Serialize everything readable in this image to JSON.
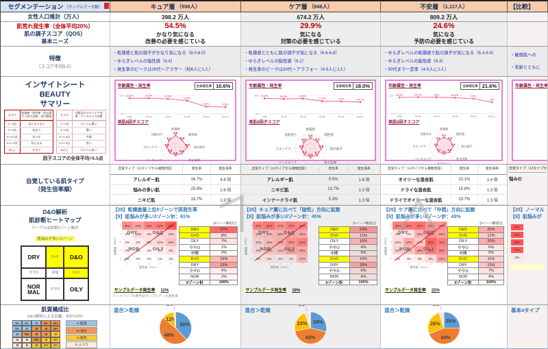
{
  "sidebar": {
    "header": "セグメンテーション",
    "header_small": "（サンプルデータ数）",
    "row_pop": "女性人口推計（万人）",
    "row_rate": "肌荒れ発生率（全体平均20%）",
    "row_qos": "肌の調子スコア（QOS）",
    "row_needs": "基本ニーズ",
    "row_feat": "特徴",
    "row_feat_sub": "（スコア平均5.5）",
    "insight_1": "インサイトシート",
    "insight_2": "BEAUTY",
    "insight_3": "サマリー",
    "score_note": "因子スコアの全体平均=5.5点",
    "score_table_left": {
      "border": "#b00000",
      "headers": [
        "スコア",
        "乾燥感・脂性感・肌の調子＋吹き出物・毛穴関連"
      ],
      "rows": [
        [
          "1～3点",
          "気にならない"
        ],
        [
          "3～5点",
          "あまり"
        ],
        [
          "5～6.5点",
          "ゆらぎ"
        ],
        [
          "6.5～8点",
          "気になる"
        ],
        [
          "8以上",
          "かなり"
        ]
      ]
    },
    "score_table_right": {
      "border": "#e8a7b8",
      "headers": [
        "スコア",
        "化粧品のスキンケア効果・ベースメイク効果"
      ],
      "rows": [
        [
          "1～3点",
          "たいへん悪い"
        ],
        [
          "3～5点",
          "悪い"
        ],
        [
          "5～6.5点",
          "中間"
        ],
        [
          "6.5～8点",
          "良い"
        ],
        [
          "8以上",
          "たいへん良い"
        ]
      ]
    },
    "row_types_1": "自覚している肌タイプ",
    "row_types_2": "（発生倍率順）",
    "dando_1": "D&O解析",
    "dando_2": "肌診断ヒートマップ",
    "dando_note1": "テーブルは診断9ゾーン集計",
    "dando_note2": "肌悩みが多い3ゾーン",
    "zone_matrix": {
      "cells": [
        [
          "DRY",
          "D>O",
          "D&O"
        ],
        [
          "ややD",
          "中間",
          "O>D"
        ],
        [
          "NORMAL",
          "ややO",
          "OILY"
        ]
      ],
      "yellow": [
        "D>O",
        "D&O",
        "O>D"
      ],
      "big": [
        "DRY",
        "D&O",
        "NORMAL",
        "OILY"
      ]
    },
    "comp_title": "肌質構成比",
    "comp_note": "D&O解析による定義、合計100%",
    "comp_matrix": [
      [
        "D+",
        "D+",
        "D",
        "M+",
        "M+"
      ],
      [
        "D+",
        "D",
        "M",
        "M",
        "M+"
      ],
      [
        "D",
        "Mn",
        "M",
        "M",
        "O"
      ],
      [
        "N",
        "N",
        "Mn",
        "O",
        "O+"
      ],
      [
        "N",
        "N",
        "O",
        "O+",
        "O+"
      ]
    ],
    "comp_legend": [
      {
        "label": "D 乾燥",
        "color": "#9dc3e6"
      },
      {
        "label": "M 混合",
        "color": "#f1975a"
      },
      {
        "label": "O 脂性",
        "color": "#ffc936"
      },
      {
        "label": "N ふつう",
        "color": "#fdeada"
      }
    ]
  },
  "columns": [
    {
      "name": "キュア層",
      "count": "（558人）",
      "pop": "398.2 万人",
      "pct": "54.5%",
      "line1": "かなり気になる",
      "line2": "改善の必要を感じている",
      "features": [
        "・乾燥感と肌の調子がかなり気になる（8.0-8.0）",
        "・ゆらぎレベルの脂性感（6.4）",
        "・発生率のピークは20代～アラサー（約6人に1人）"
      ],
      "chart": {
        "title": "年齢属性・発生率",
        "overall_label": "全体発生率",
        "overall_value": "10.6%",
        "ytop": "15%",
        "ymax": 15,
        "x": [
          "20前",
          "25-34",
          "35-44",
          "45-54",
          "55-64",
          "65以上"
        ],
        "y": [
          12.8,
          12.9,
          12.3,
          10.8,
          5.9,
          5.6
        ]
      },
      "radar": {
        "title": "美肌8因子スコア",
        "axes": [
          "乾燥感",
          "脂性感",
          "肌の調子",
          "吹き出物",
          "毛穴詰まり",
          "ベースメイク",
          "スキンケア",
          "化粧持ち"
        ],
        "values": [
          8.0,
          6.4,
          8.0,
          5.9,
          5.5,
          5.3,
          5.8,
          6.2
        ]
      },
      "types": {
        "headers": [
          "自覚タイプ（13タイプから複数回答）",
          "発生率",
          "発生倍率"
        ],
        "rows": [
          [
            "アレルギー肌",
            "16.7%",
            "4.8 倍"
          ],
          [
            "悩みの多い肌",
            "25.6%",
            "2.6 倍"
          ],
          [
            "ニキビ肌",
            "19.7%",
            "1.9 倍"
          ]
        ]
      },
      "dando": {
        "line25": "【25】乾燥度最上位5ゾーンで高発生率",
        "line9": "【9】肌悩みが多い3ゾーン計：61%",
        "heatmap": {
          "ylabel": "乾燥度（DRY）",
          "xlabel": "脂性度（OILY）",
          "yticks": [
            "5",
            "4",
            "3",
            "2",
            "1"
          ],
          "xticks": [
            "1",
            "2",
            "3",
            "4",
            "5"
          ],
          "rows": [
            [
              29,
              24,
              32,
              34,
              42
            ],
            [
              3,
              10,
              8,
              12,
              12
            ],
            [
              3,
              5,
              8,
              10,
              16
            ],
            [
              4,
              2,
              3,
              5,
              8
            ],
            [
              0,
              0,
              0,
              1,
              2
            ]
          ],
          "overlay": [
            "DRY",
            "D&O",
            "NOR",
            "OILY"
          ]
        },
        "zones": {
          "header": "【9ゾーン構成比】",
          "yellow": [
            "D&O",
            "O>D",
            "D>O"
          ],
          "rows": [
            [
              "D&O",
              "37%"
            ],
            [
              "O>D",
              "8%"
            ],
            [
              "OILY",
              "7%"
            ],
            [
              "ややO",
              "1%"
            ],
            [
              "中間",
              "2%"
            ],
            [
              "D>O",
              "16%"
            ],
            [
              "DRY",
              "23%"
            ],
            [
              "ややD",
              "4%"
            ],
            [
              "NOR",
              "2%"
            ]
          ],
          "total": [
            "9ゾーン計",
            "100%"
          ]
        },
        "sample_label": "サンプルデータ発生率",
        "sample_value": "11%",
        "note": "ヒートマップ%数字はサンプルデータ発生率"
      },
      "pie": {
        "label": "混合＞乾燥",
        "slices": [
          {
            "pct": 38,
            "color": "#5b9bd5",
            "text": "38%"
          },
          {
            "pct": 48,
            "color": "#ed7d31",
            "text": "48%"
          },
          {
            "pct": 12,
            "color": "#ffc000",
            "text": "12%"
          },
          {
            "pct": 2,
            "color": "#f6e3d5",
            "text": "2%"
          }
        ]
      }
    },
    {
      "name": "ケア層",
      "count": "（948人）",
      "pop": "674.2 万人",
      "pct": "29.9%",
      "line1": "気になる",
      "line2": "対策の必要を感じている",
      "features": [
        "・乾燥感とともに肌の調子が気になる（6.6-6.8）",
        "・ゆらぎレベルの脂性感（6.2）",
        "・発生率のピークは20代～アラフォー（4-5人に1人）"
      ],
      "chart": {
        "title": "年齢属性・発生率",
        "overall_label": "全体発生率",
        "overall_value": "18.0%",
        "ytop": "25%",
        "ymax": 25,
        "x": [
          "20前",
          "25-34",
          "35-44",
          "45-54",
          "55-64",
          "65以上"
        ],
        "y": [
          21.3,
          20.4,
          20.9,
          17.5,
          17.0,
          16.1
        ]
      },
      "radar": {
        "title": "美肌8因子スコア",
        "axes": [
          "乾燥感",
          "脂性感",
          "肌の調子",
          "吹き出物",
          "毛穴詰まり",
          "ベースメイク",
          "スキンケア",
          "化粧持ち"
        ],
        "values": [
          6.6,
          6.2,
          6.8,
          5.7,
          5.4,
          5.2,
          5.6,
          5.9
        ]
      },
      "types": {
        "headers": [
          "自覚タイプ（13タイプから複数回答）",
          "発生率",
          "発生倍率"
        ],
        "rows": [
          [
            "アレルギー肌",
            "5.5%",
            "1.6 倍"
          ],
          [
            "ニキビ肌",
            "13.7%",
            "1.3 倍"
          ],
          [
            "インナードライ肌",
            "5.3%",
            "1.3 倍"
          ]
        ]
      },
      "dando": {
        "line25": "【25】キュア層に比べて「脂性」方向に拡散",
        "line9": "【9】肌悩みが多い3ゾーン計：45%",
        "heatmap": {
          "ylabel": "乾燥度（DRY）",
          "xlabel": "脂性度（OILY）",
          "yticks": [
            "5",
            "4",
            "3",
            "2",
            "1"
          ],
          "xticks": [
            "1",
            "2",
            "3",
            "4",
            "5"
          ],
          "rows": [
            [
              30,
              35,
              27,
              32,
              29
            ],
            [
              13,
              16,
              18,
              21,
              20
            ],
            [
              10,
              15,
              19,
              26,
              31
            ],
            [
              8,
              14,
              14,
              23,
              20
            ],
            [
              3,
              5,
              4,
              4,
              17
            ]
          ],
          "overlay": [
            "DRY",
            "D&O",
            "NOR",
            "OILY"
          ]
        },
        "zones": {
          "header": "【9ゾーン構成比】",
          "yellow": [
            "D&O",
            "O>D",
            "D>O"
          ],
          "rows": [
            [
              "D&O",
              "24%"
            ],
            [
              "O>D",
              "11%"
            ],
            [
              "OILY",
              "16%"
            ],
            [
              "ややO",
              "4%"
            ],
            [
              "中間",
              "5%"
            ],
            [
              "D>O",
              "10%"
            ],
            [
              "DRY",
              "20%"
            ],
            [
              "ややD",
              "6%"
            ],
            [
              "NOR",
              "4%"
            ]
          ],
          "total": [
            "9ゾーン計",
            "100%"
          ]
        },
        "sample_label": "サンプルデータ発生率",
        "sample_value": "18%",
        "note": ""
      },
      "pie": {
        "label": "混合＞乾燥",
        "slices": [
          {
            "pct": 29,
            "color": "#5b9bd5",
            "text": "29%"
          },
          {
            "pct": 43,
            "color": "#ed7d31",
            "text": "43%"
          },
          {
            "pct": 22,
            "color": "#ffc000",
            "text": "22%"
          },
          {
            "pct": 5,
            "color": "#f6e3d5",
            "text": "5%"
          }
        ]
      }
    },
    {
      "name": "不安層",
      "count": "（1,117人）",
      "pop": "809.2 万人",
      "pct": "24.6%",
      "line1": "気になる",
      "line2": "予防の必要を感じている",
      "features": [
        "・ゆらぎレベルの乾燥感で肌の調子が気になる（6.3-6.6）",
        "・ゆらぎレベルの脂性感（6.3）",
        "・50代まで一定率（4-5人に1人）"
      ],
      "chart": {
        "title": "年齢属性・発生率",
        "overall_label": "全体発生率",
        "overall_value": "21.6%",
        "ytop": "25%",
        "ymax": 25,
        "x": [
          "20前",
          "25-34",
          "35-44",
          "45-54",
          "55-64",
          "65以上"
        ],
        "y": [
          22.8,
          23.1,
          23.0,
          22.4,
          21.0,
          16.0
        ]
      },
      "radar": {
        "title": "美肌8因子スコア",
        "axes": [
          "乾燥感",
          "脂性感",
          "肌の調子",
          "吹き出物",
          "毛穴詰まり",
          "ベースメイク",
          "スキンケア",
          "化粧持ち"
        ],
        "values": [
          6.3,
          6.3,
          6.6,
          5.6,
          5.3,
          5.2,
          5.5,
          5.8
        ]
      },
      "types": {
        "headers": [
          "自覚タイプ（13タイプから複数回答）",
          "発生率",
          "発生倍率"
        ],
        "rows": [
          [
            "オイリーな混合肌",
            "13.1%",
            "1.4 倍"
          ],
          [
            "ドライな混合肌",
            "15.8%",
            "1.3 倍"
          ],
          [
            "ドライでオイリーな混合肌",
            "23.7%",
            "1.3 倍"
          ]
        ]
      },
      "dando": {
        "line25": "【25】ケア層に比べて「中間」方向に拡散",
        "line9": "【9】肌悩みが多い3ゾーン計：43%",
        "heatmap": {
          "ylabel": "乾燥度（DRY）",
          "xlabel": "脂性度（OILY）",
          "yticks": [
            "5",
            "4",
            "3",
            "2",
            "1"
          ],
          "xticks": [
            "1",
            "2",
            "3",
            "4",
            "5"
          ],
          "rows": [
            [
              33,
              35,
              37,
              28,
              27
            ],
            [
              8,
              7,
              20,
              29,
              25
            ],
            [
              10,
              22,
              14,
              40,
              33
            ],
            [
              12,
              14,
              25,
              33,
              30
            ],
            [
              2,
              3,
              5,
              9,
              23
            ]
          ],
          "overlay": [
            "DRY",
            "D&O",
            "NOR",
            "OILY"
          ]
        },
        "zones": {
          "header": "【9ゾーン構成比】",
          "yellow": [
            "D&O",
            "O>D",
            "D>O"
          ],
          "rows": [
            [
              "D&O",
              "20%"
            ],
            [
              "O>D",
              "12%"
            ],
            [
              "OILY",
              "20%"
            ],
            [
              "ややO",
              "6%"
            ],
            [
              "中間",
              "5%"
            ],
            [
              "D>O",
              "11%"
            ],
            [
              "DRY",
              "15%"
            ],
            [
              "ややD",
              "7%"
            ],
            [
              "NOR",
              "4%"
            ]
          ],
          "total": [
            "9ゾーン計",
            "100%"
          ]
        },
        "sample_label": "サンプルデータ発生率",
        "sample_value": "22%",
        "note": ""
      },
      "pie": {
        "label": "混合＞乾燥",
        "slices": [
          {
            "pct": 25,
            "color": "#5b9bd5",
            "text": "25%"
          },
          {
            "pct": 44,
            "color": "#ed7d31",
            "text": "44%"
          },
          {
            "pct": 26,
            "color": "#ffc000",
            "text": "26%"
          },
          {
            "pct": 5,
            "color": "#f6e3d5",
            "text": "5%"
          }
        ]
      }
    }
  ],
  "col4": {
    "header": "【比較】",
    "features": [
      "・敏感肌への",
      "・年齢とともに"
    ],
    "chart_title": "年齢属性・発生率",
    "types_header": "自覚タイプ（13タイプから複数回答）",
    "types_row": "悩みの",
    "line25": "【25】ノーマル",
    "line9": "【9】肌悩みが",
    "heat_col": [
      76,
      78,
      80,
      76,
      3
    ],
    "pie_label": "基本4タイプ"
  }
}
